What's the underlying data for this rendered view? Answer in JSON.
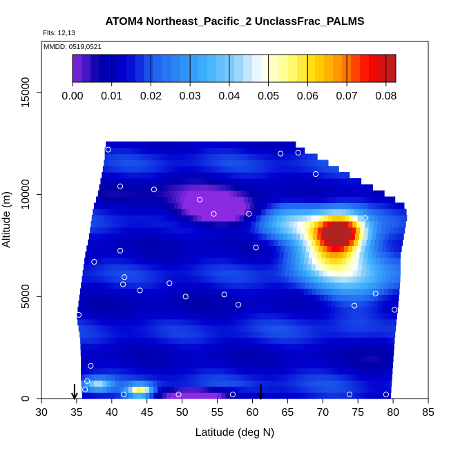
{
  "chart_data": {
    "type": "heatmap",
    "title": "ATOM4 Northeast_Pacific_2 UnclassFrac_PALMS",
    "flights_label": "Flts: 12,13",
    "mmdd_label": "MMDD: 0519,0521",
    "xlabel": "Latitude (deg N)",
    "ylabel": "Altitude (m)",
    "xlim": [
      30,
      85
    ],
    "ylim": [
      0,
      17500
    ],
    "x_ticks": [
      "30",
      "35",
      "40",
      "45",
      "50",
      "55",
      "60",
      "65",
      "70",
      "75",
      "80",
      "85"
    ],
    "y_ticks": [
      "0",
      "5000",
      "10000",
      "15000"
    ],
    "colorbar": {
      "range": [
        0,
        0.0825
      ],
      "ticks": [
        "0.00",
        "0.01",
        "0.02",
        "0.03",
        "0.04",
        "0.05",
        "0.06",
        "0.07",
        "0.08"
      ],
      "colors": [
        "#8a2be2",
        "#0000a8",
        "#0000d0",
        "#1f5ff0",
        "#2f8cf5",
        "#3fb2ff",
        "#87cefa",
        "#ffffff",
        "#ffff80",
        "#ffd700",
        "#ff8c00",
        "#ff0000",
        "#b22222"
      ]
    },
    "field": {
      "background": 0.014,
      "blobs": [
        {
          "lat": 72.5,
          "alt": 8200,
          "value": 0.078,
          "slat": 3.5,
          "salt": 900
        },
        {
          "lat": 71.0,
          "alt": 7200,
          "value": 0.05,
          "slat": 5.0,
          "salt": 1200
        },
        {
          "lat": 66.0,
          "alt": 8600,
          "value": 0.035,
          "slat": 5.0,
          "salt": 900
        },
        {
          "lat": 75.0,
          "alt": 6000,
          "value": 0.032,
          "slat": 6.0,
          "salt": 1500
        },
        {
          "lat": 55.0,
          "alt": 9200,
          "value": -0.011,
          "slat": 6.0,
          "salt": 700
        },
        {
          "lat": 52.0,
          "alt": 250,
          "value": -0.012,
          "slat": 5.5,
          "salt": 250
        },
        {
          "lat": 44.0,
          "alt": 400,
          "value": 0.055,
          "slat": 1.8,
          "salt": 300
        },
        {
          "lat": 38.0,
          "alt": 700,
          "value": 0.04,
          "slat": 2.0,
          "salt": 300
        },
        {
          "lat": 50.0,
          "alt": 6000,
          "value": 0.013,
          "slat": 14.0,
          "salt": 1800
        },
        {
          "lat": 45.0,
          "alt": 3800,
          "value": 0.012,
          "slat": 12.0,
          "salt": 800
        },
        {
          "lat": 50.0,
          "alt": 10200,
          "value": 0.008,
          "slat": 10.0,
          "salt": 900
        },
        {
          "lat": 78.0,
          "alt": 2500,
          "value": 0.01,
          "slat": 3.0,
          "salt": 2000
        }
      ]
    },
    "sample_points": [
      [
        39.5,
        12200
      ],
      [
        64.0,
        12000
      ],
      [
        66.5,
        12050
      ],
      [
        69.0,
        11000
      ],
      [
        41.2,
        10400
      ],
      [
        46.0,
        10250
      ],
      [
        52.5,
        9750
      ],
      [
        54.5,
        9050
      ],
      [
        59.5,
        9050
      ],
      [
        76.0,
        8850
      ],
      [
        60.5,
        7400
      ],
      [
        41.2,
        7250
      ],
      [
        37.5,
        6700
      ],
      [
        41.8,
        5950
      ],
      [
        41.6,
        5600
      ],
      [
        44.0,
        5300
      ],
      [
        48.2,
        5650
      ],
      [
        50.5,
        5000
      ],
      [
        56.0,
        5100
      ],
      [
        58.0,
        4600
      ],
      [
        74.5,
        4550
      ],
      [
        77.5,
        5150
      ],
      [
        80.2,
        4350
      ],
      [
        35.3,
        4100
      ],
      [
        37.0,
        1600
      ],
      [
        36.5,
        850
      ],
      [
        36.2,
        450
      ],
      [
        41.7,
        200
      ],
      [
        49.5,
        200
      ],
      [
        57.2,
        200
      ],
      [
        73.8,
        200
      ],
      [
        79.0,
        200
      ]
    ],
    "arrows_lat": [
      34.7,
      61.2
    ]
  }
}
